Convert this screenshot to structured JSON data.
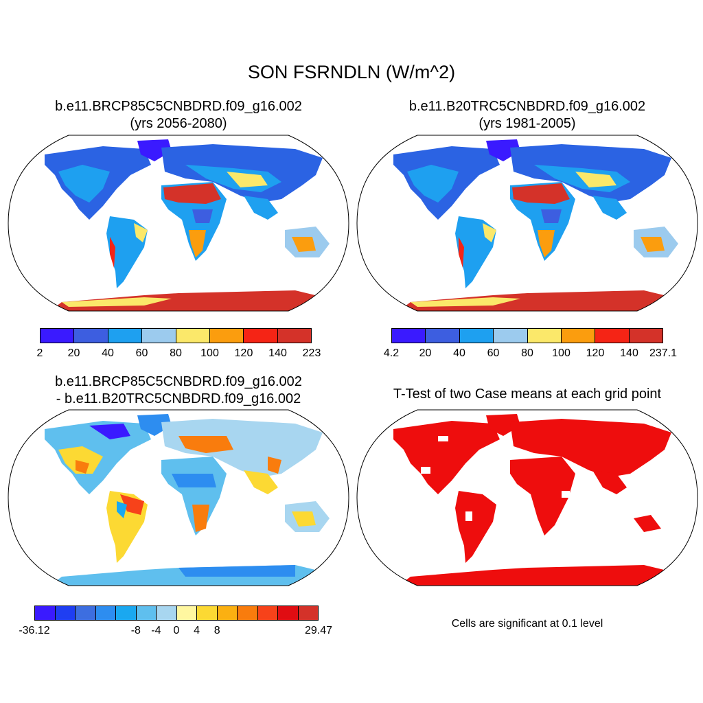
{
  "title": "SON FSRNDLN (W/m^2)",
  "panels": {
    "p1": {
      "line1": "b.e11.BRCP85C5CNBDRD.f09_g16.002",
      "line2": "(yrs 2056-2080)"
    },
    "p2": {
      "line1": "b.e11.B20TRC5CNBDRD.f09_g16.002",
      "line2": "(yrs 1981-2005)"
    },
    "p3": {
      "line1": "b.e11.BRCP85C5CNBDRD.f09_g16.002",
      "line2": "- b.e11.B20TRC5CNBDRD.f09_g16.002"
    },
    "p4": {
      "line1": "T-Test of two Case means at each grid point"
    }
  },
  "colorbars": {
    "cb1": {
      "colors": [
        "#3a1aff",
        "#3d5ee0",
        "#1ea0f0",
        "#9ccbee",
        "#fbe86a",
        "#fb9d0e",
        "#f52415",
        "#d43229"
      ],
      "ticks": [
        "2",
        "20",
        "40",
        "60",
        "80",
        "100",
        "120",
        "140",
        "223"
      ]
    },
    "cb2": {
      "colors": [
        "#3a1aff",
        "#3d5ee0",
        "#1ea0f0",
        "#9ccbee",
        "#fbe86a",
        "#fb9d0e",
        "#f52415",
        "#d43229"
      ],
      "ticks": [
        "4.2",
        "20",
        "40",
        "60",
        "80",
        "100",
        "120",
        "140",
        "237.1"
      ]
    },
    "cb3": {
      "colors": [
        "#3a1aff",
        "#1f3ef2",
        "#3d6ee0",
        "#2d8df0",
        "#1aa8f0",
        "#5fbfee",
        "#a8d6f0",
        "#fff7a0",
        "#fcd933",
        "#fbb011",
        "#f97c0d",
        "#f7421a",
        "#e00d12",
        "#d43229"
      ],
      "ticks": [
        "-36.12",
        "-8",
        "-4",
        "0",
        "4",
        "8",
        "29.47"
      ]
    }
  },
  "note": "Cells are significant at 0.1 level"
}
